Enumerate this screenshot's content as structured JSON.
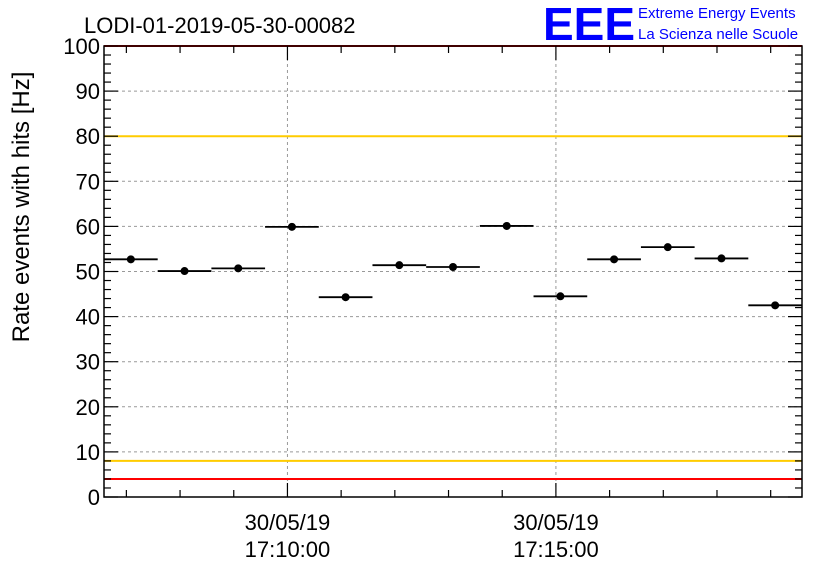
{
  "chart_data": {
    "type": "scatter",
    "title": "LODI-01-2019-05-30-00082",
    "ylabel": "Rate events with hits [Hz]",
    "xlabel": "",
    "ylim": [
      0,
      100
    ],
    "y_ticks": [
      0,
      10,
      20,
      30,
      40,
      50,
      60,
      70,
      80,
      90,
      100
    ],
    "x_range": [
      "17:06:35",
      "17:19:35"
    ],
    "x_major_ticks": [
      {
        "time": "17:10:00",
        "label_line1": "30/05/19",
        "label_line2": "17:10:00"
      },
      {
        "time": "17:15:00",
        "label_line1": "30/05/19",
        "label_line2": "17:15:00"
      }
    ],
    "grid": true,
    "bin_width_seconds": 60,
    "series": [
      {
        "marker": "circle",
        "color": "#000000",
        "x": [
          "17:07:05",
          "17:08:05",
          "17:09:05",
          "17:10:05",
          "17:11:05",
          "17:12:05",
          "17:13:05",
          "17:14:05",
          "17:15:05",
          "17:16:05",
          "17:17:05",
          "17:18:05",
          "17:19:05"
        ],
        "values": [
          52.7,
          50.1,
          50.7,
          59.9,
          44.3,
          51.4,
          51.0,
          60.1,
          44.5,
          52.7,
          55.4,
          52.9,
          42.5
        ]
      }
    ],
    "reference_lines": [
      {
        "y": 100,
        "color": "#ff0000"
      },
      {
        "y": 80,
        "color": "#ffcc00"
      },
      {
        "y": 8,
        "color": "#ffcc00"
      },
      {
        "y": 4,
        "color": "#ff0000"
      }
    ]
  },
  "logo": {
    "mark": "EEE",
    "line1": "Extreme Energy Events",
    "line2": "La Scienza nelle Scuole",
    "color": "#0000ff"
  }
}
